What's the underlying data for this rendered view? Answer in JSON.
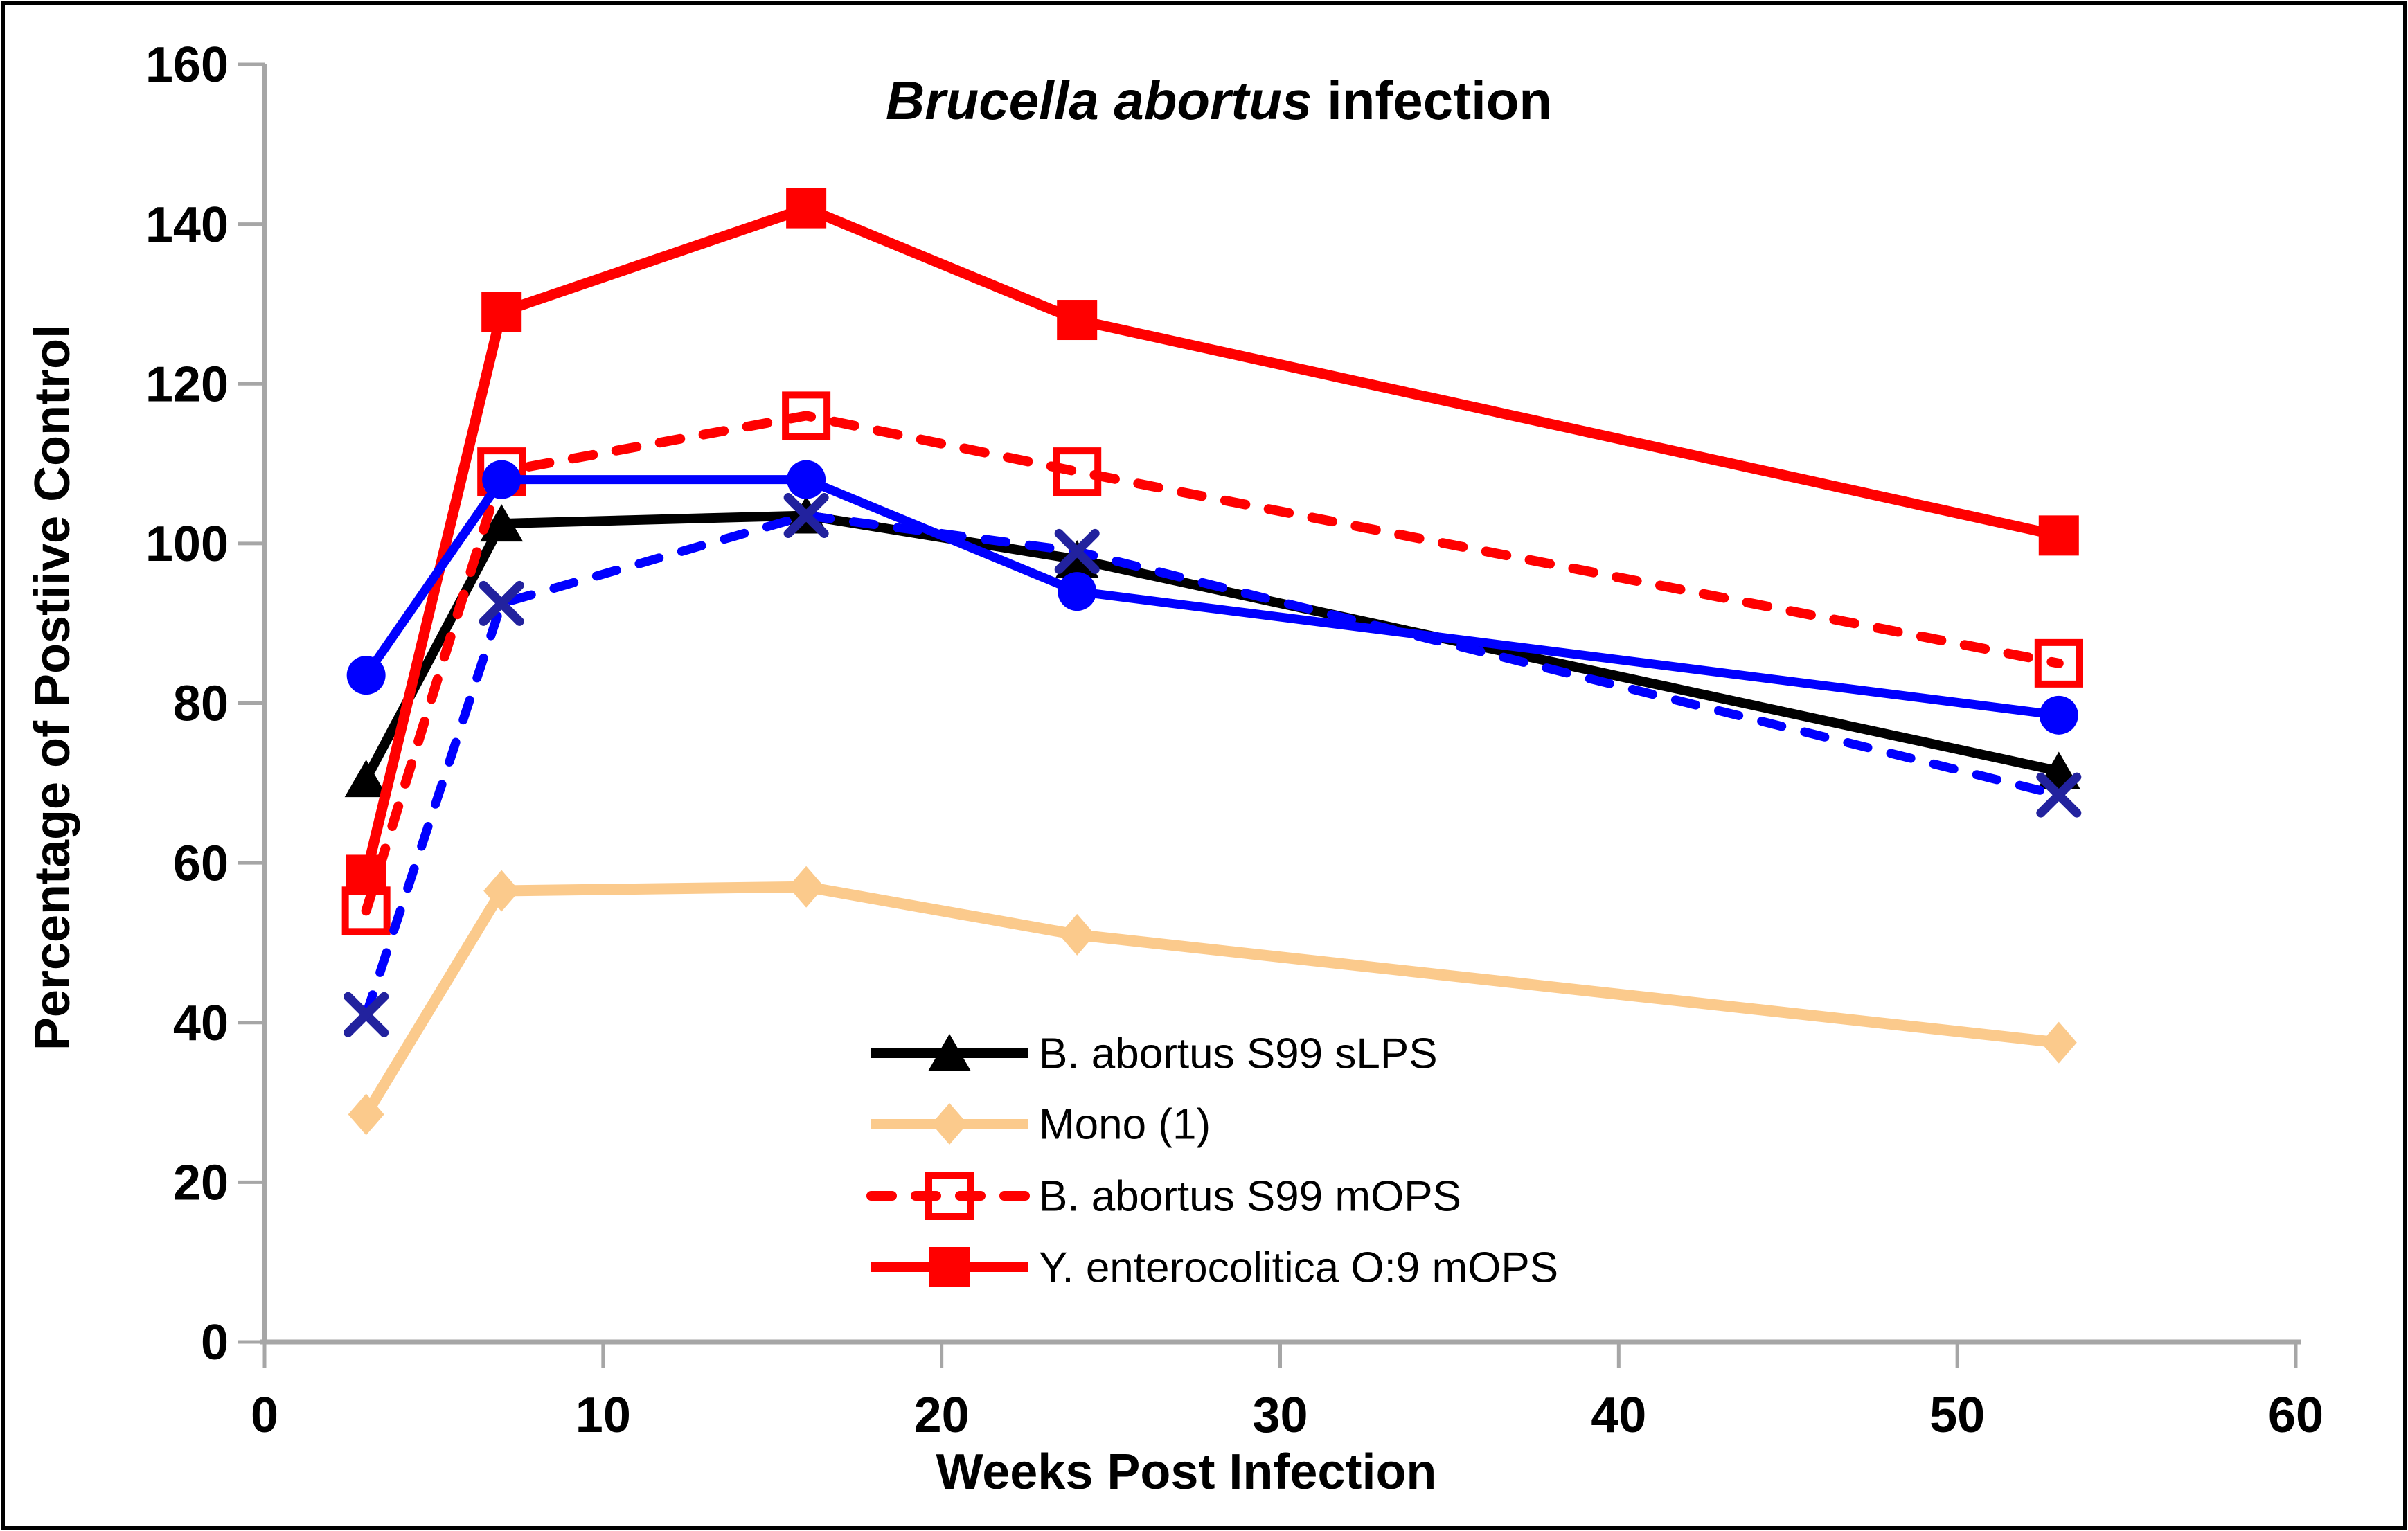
{
  "figure": {
    "title_italic": "Brucella abortus",
    "title_regular": " infection",
    "border_color": "#000000",
    "background": "#FFFFFF",
    "axis_color": "#A6A6A6"
  },
  "chart_data": {
    "type": "line",
    "title": "Brucella abortus infection",
    "xlabel": "Weeks Post Infection",
    "ylabel": "Percentage of Postiive Control",
    "x": [
      3,
      7,
      16,
      24,
      53
    ],
    "xlim": [
      0,
      60
    ],
    "ylim": [
      0,
      160
    ],
    "x_ticks": [
      0,
      10,
      20,
      30,
      40,
      50,
      60
    ],
    "y_ticks": [
      0,
      20,
      40,
      60,
      80,
      100,
      120,
      140,
      160
    ],
    "grid": false,
    "legend_position": "inside-lower-center",
    "series": [
      {
        "name": "B. abortus S99 sLPS",
        "color": "#000000",
        "dash": "solid",
        "marker": "triangle",
        "in_legend": true,
        "values": [
          70.5,
          102.5,
          103.5,
          98,
          71.5
        ]
      },
      {
        "name": "Mono (1)",
        "color": "#FBCA8C",
        "dash": "solid",
        "marker": "diamond",
        "in_legend": true,
        "values": [
          28.5,
          56.5,
          57,
          51,
          37.5
        ]
      },
      {
        "name": "B. abortus S99 mOPS",
        "color": "#FF0000",
        "dash": "dashed",
        "marker": "open-square",
        "in_legend": true,
        "values": [
          54,
          109,
          116,
          109,
          85
        ]
      },
      {
        "name": "Y. enterocolitica O:9 mOPS",
        "color": "#FF0000",
        "dash": "solid",
        "marker": "square",
        "in_legend": true,
        "values": [
          58.5,
          129,
          142,
          128,
          101
        ]
      },
      {
        "name": "(unlabeled blue solid, circle markers)",
        "color": "#0000FF",
        "dash": "solid",
        "marker": "circle",
        "in_legend": false,
        "values": [
          83.5,
          108,
          108,
          94,
          78.5
        ]
      },
      {
        "name": "(unlabeled blue dashed, x markers)",
        "color": "#0000FF",
        "marker_color": "#22229E",
        "dash": "dashed",
        "marker": "x",
        "in_legend": false,
        "values": [
          41,
          92.5,
          103.5,
          99,
          68.5
        ]
      }
    ]
  }
}
